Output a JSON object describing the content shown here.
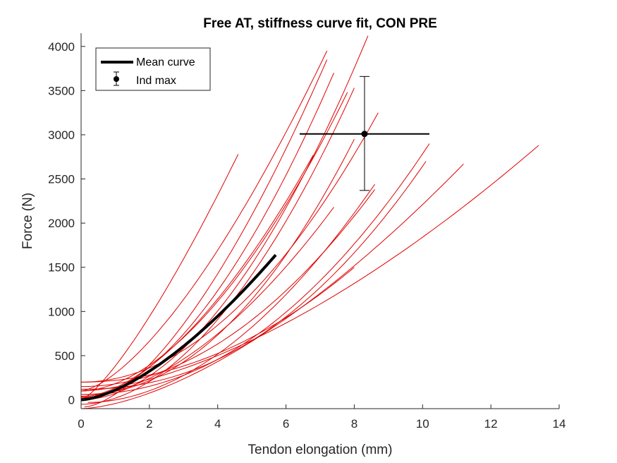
{
  "chart_data": {
    "type": "line",
    "title": "Free AT, stiffness curve fit, CON PRE",
    "xlabel": "Tendon elongation (mm)",
    "ylabel": "Force (N)",
    "xlim": [
      0,
      14
    ],
    "ylim": [
      -100,
      4150
    ],
    "xticks": [
      "0",
      "2",
      "4",
      "6",
      "8",
      "10",
      "12",
      "14"
    ],
    "yticks": [
      "0",
      "500",
      "1000",
      "1500",
      "2000",
      "2500",
      "3000",
      "3500",
      "4000"
    ],
    "grid": false,
    "legend_position": "top-left",
    "legend": [
      "Mean curve",
      "Ind max"
    ],
    "individual_color": "#e00000",
    "mean_color": "#000000",
    "individual_curves": [
      {
        "x": [
          0.0,
          4.6
        ],
        "y": [
          0,
          2780
        ],
        "exponent": 1.3
      },
      {
        "x": [
          0.0,
          6.8
        ],
        "y": [
          30,
          2770
        ],
        "exponent": 1.7
      },
      {
        "x": [
          0.0,
          7.2
        ],
        "y": [
          100,
          3950
        ],
        "exponent": 1.5
      },
      {
        "x": [
          0.1,
          7.2
        ],
        "y": [
          -80,
          3850
        ],
        "exponent": 1.6
      },
      {
        "x": [
          0.0,
          7.4
        ],
        "y": [
          20,
          3700
        ],
        "exponent": 1.8
      },
      {
        "x": [
          0.0,
          8.0
        ],
        "y": [
          -50,
          3530
        ],
        "exponent": 1.9
      },
      {
        "x": [
          0.0,
          7.8
        ],
        "y": [
          100,
          3480
        ],
        "exponent": 1.8
      },
      {
        "x": [
          0.0,
          8.4
        ],
        "y": [
          0,
          4120
        ],
        "exponent": 1.9
      },
      {
        "x": [
          0.0,
          8.7
        ],
        "y": [
          200,
          3250
        ],
        "exponent": 2.0
      },
      {
        "x": [
          0.0,
          8.0
        ],
        "y": [
          60,
          2950
        ],
        "exponent": 2.1
      },
      {
        "x": [
          0.0,
          7.4
        ],
        "y": [
          40,
          2180
        ],
        "exponent": 1.8
      },
      {
        "x": [
          0.2,
          8.6
        ],
        "y": [
          -30,
          2440
        ],
        "exponent": 1.9
      },
      {
        "x": [
          0.0,
          8.6
        ],
        "y": [
          150,
          2380
        ],
        "exponent": 2.0
      },
      {
        "x": [
          0.0,
          10.2
        ],
        "y": [
          60,
          2900
        ],
        "exponent": 2.1
      },
      {
        "x": [
          0.0,
          10.1
        ],
        "y": [
          120,
          2700
        ],
        "exponent": 2.2
      },
      {
        "x": [
          0.0,
          11.2
        ],
        "y": [
          -100,
          2670
        ],
        "exponent": 1.6
      },
      {
        "x": [
          0.0,
          13.4
        ],
        "y": [
          100,
          2880
        ],
        "exponent": 1.6
      },
      {
        "x": [
          0.0,
          8.0
        ],
        "y": [
          200,
          1500
        ],
        "exponent": 2.0
      }
    ],
    "mean_curve": {
      "x": [
        0.0,
        5.7
      ],
      "y": [
        0,
        1640
      ],
      "exponent": 1.55
    },
    "ind_max": {
      "x": 8.3,
      "y": 3010,
      "x_err": [
        6.4,
        10.2
      ],
      "y_err": [
        2370,
        3660
      ]
    }
  }
}
